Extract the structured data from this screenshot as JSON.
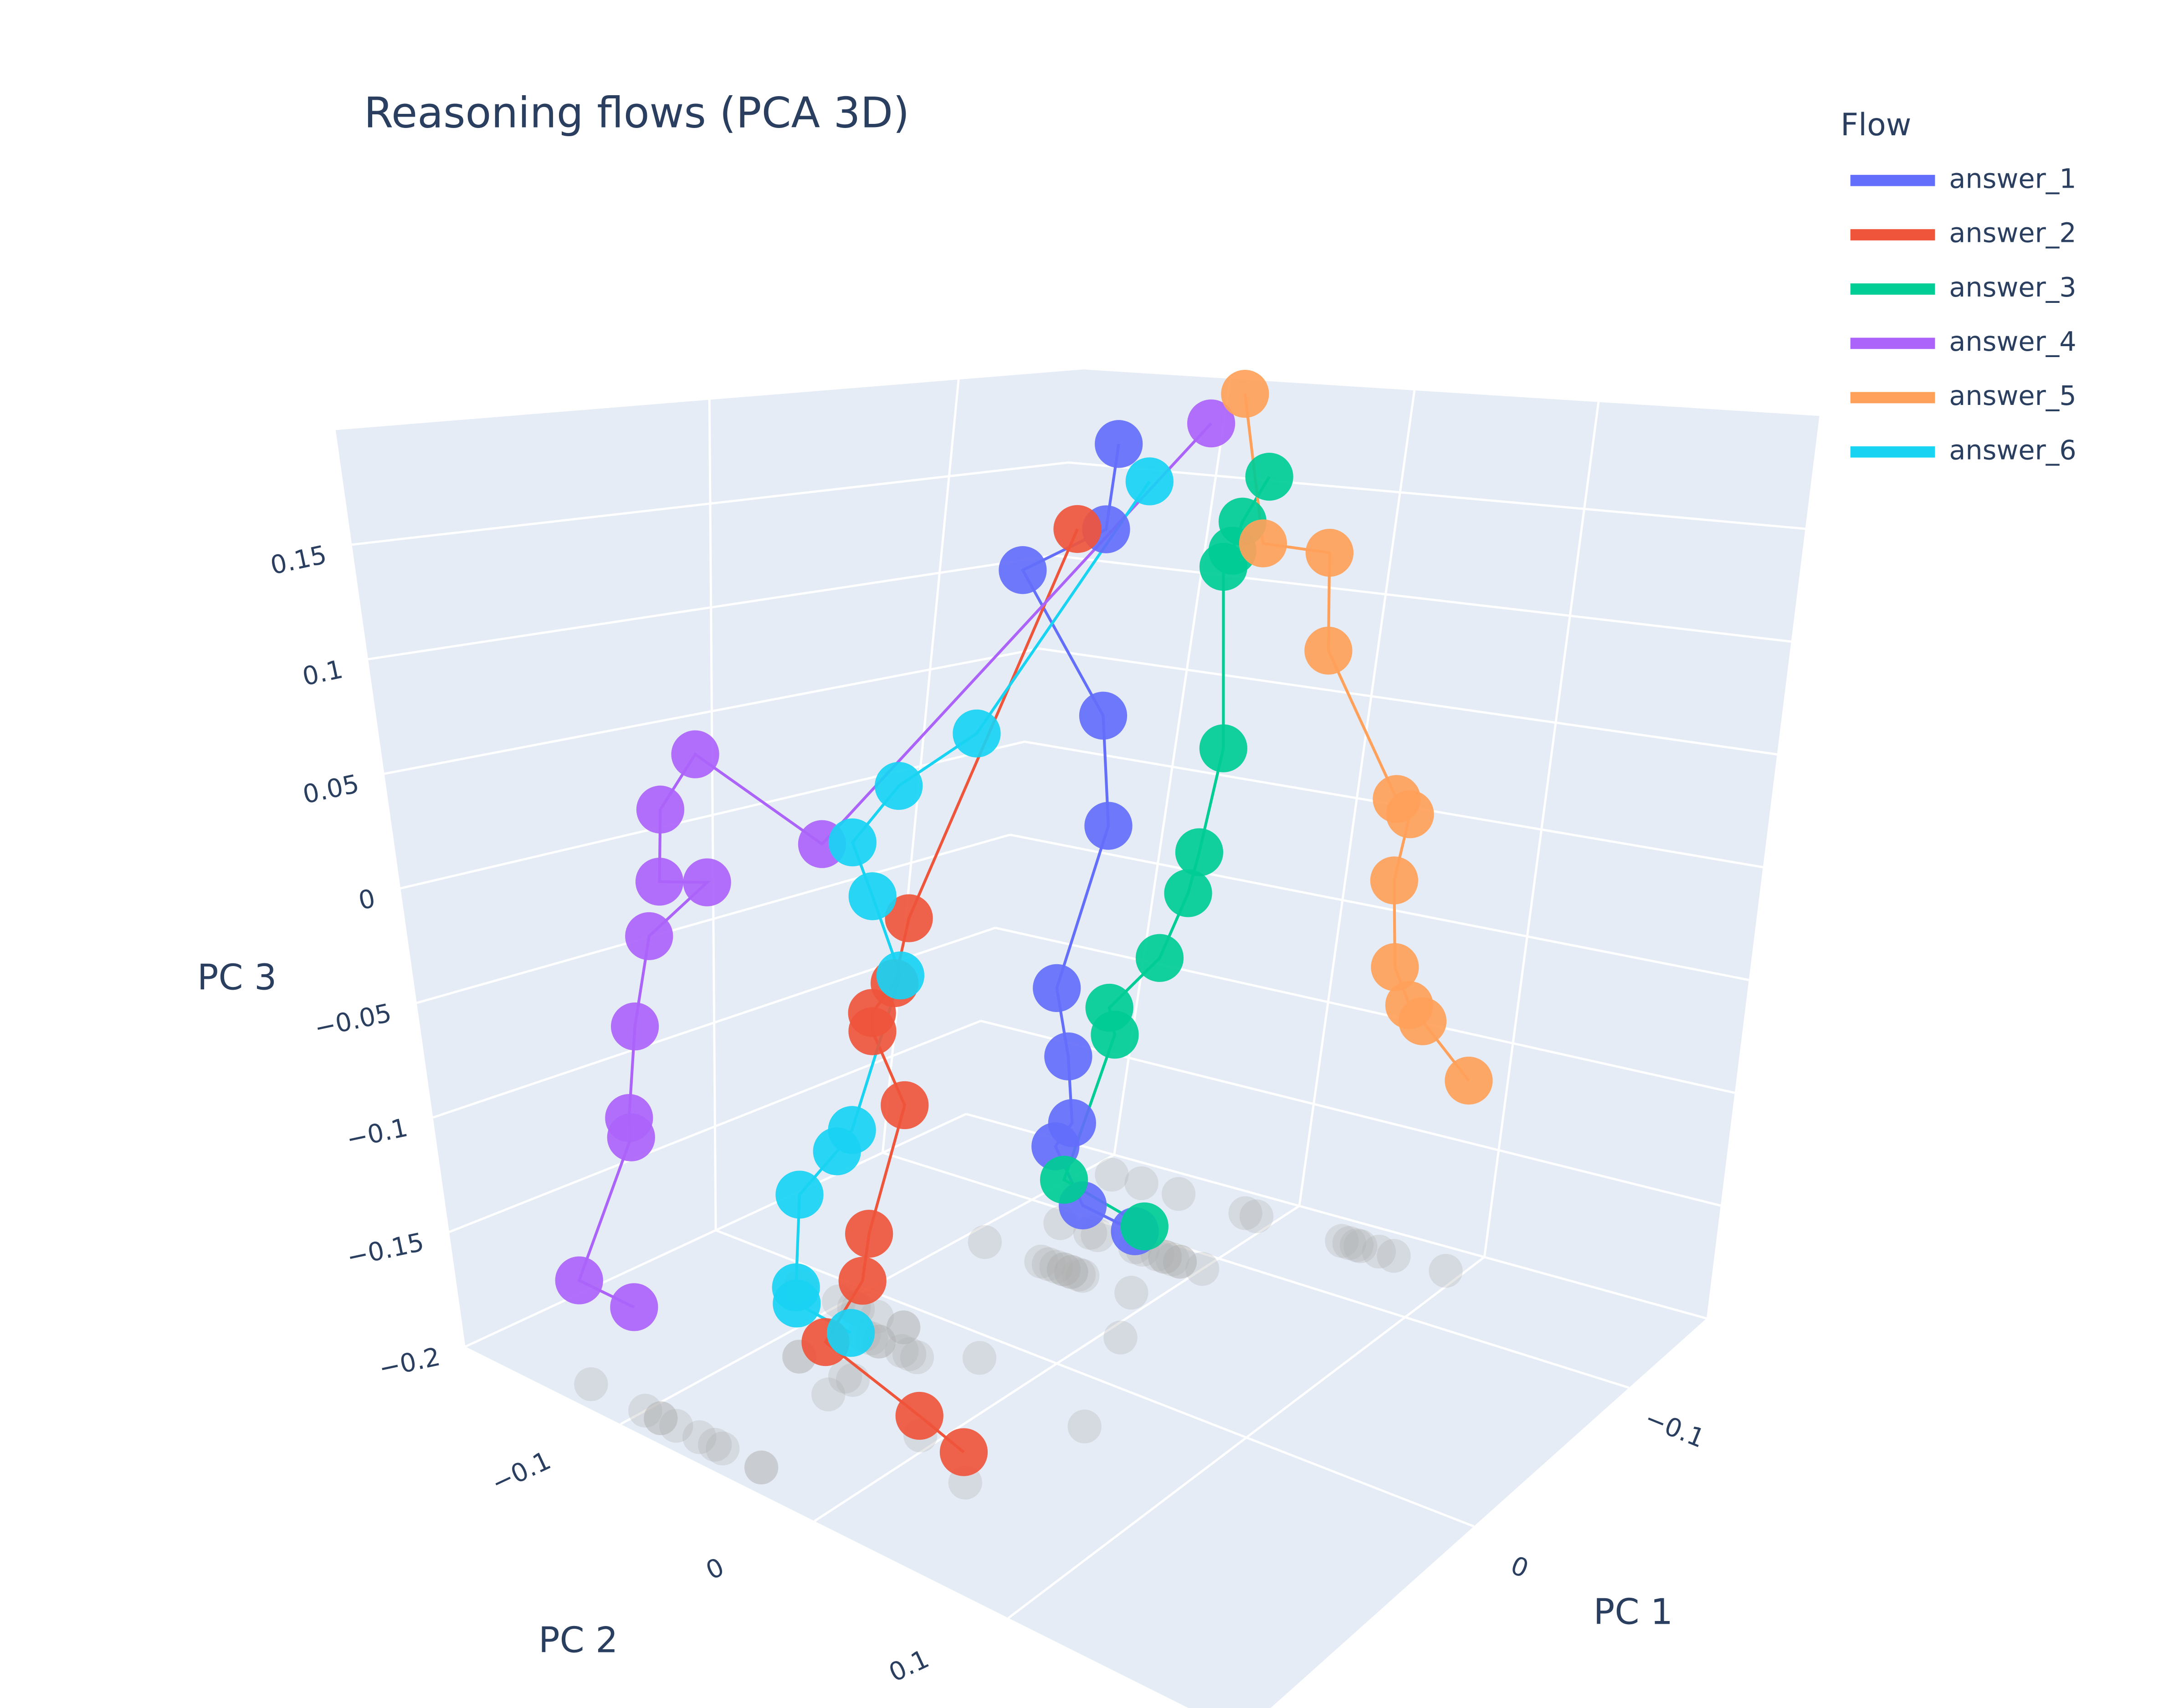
{
  "chart_data": {
    "type": "scatter3d",
    "title": "Reasoning flows (PCA 3D)",
    "x_label": "PC 1",
    "y_label": "PC 2",
    "z_label": "PC 3",
    "legend_title": "Flow",
    "legend_position": "top-right",
    "shadows": true,
    "xlim": [
      -0.15,
      0.15
    ],
    "ylim": [
      -0.18,
      0.22
    ],
    "zlim": [
      -0.2,
      0.2
    ],
    "xticks": [
      {
        "value": -0.1,
        "label": "−0.1"
      },
      0
    ],
    "yticks": [
      {
        "value": -0.1,
        "label": "−0.1"
      },
      0,
      0.1
    ],
    "zticks": [
      {
        "value": -0.2,
        "label": "−0.2"
      },
      {
        "value": -0.15,
        "label": "−0.15"
      },
      {
        "value": -0.1,
        "label": "−0.1"
      },
      {
        "value": -0.05,
        "label": "−0.05"
      },
      0,
      0.05,
      0.1,
      0.15
    ],
    "series": [
      {
        "name": "answer_1",
        "color": "#636efa",
        "x": [
          -0.06,
          -0.06,
          -0.06,
          -0.06,
          -0.06,
          -0.06,
          -0.06,
          -0.06,
          -0.06,
          -0.06,
          -0.06
        ],
        "y": [
          -0.044,
          -0.048,
          -0.09,
          -0.044,
          -0.038,
          -0.06,
          -0.052,
          -0.048,
          -0.056,
          -0.04,
          -0.012
        ],
        "z": [
          0.184,
          0.144,
          0.12,
          0.058,
          0.008,
          -0.072,
          -0.102,
          -0.132,
          -0.145,
          -0.168,
          -0.172
        ]
      },
      {
        "name": "answer_2",
        "color": "#ef553b",
        "x": [
          0.03,
          0.03,
          0.03,
          0.03,
          0.03,
          0.03,
          0.03,
          0.03,
          0.075,
          0.075,
          0.09
        ],
        "y": [
          0.04,
          -0.048,
          -0.056,
          -0.068,
          -0.068,
          -0.052,
          -0.072,
          -0.076,
          -0.056,
          -0.008,
          0.028
        ],
        "z": [
          0.168,
          -0.01,
          -0.04,
          -0.056,
          -0.064,
          -0.092,
          -0.154,
          -0.176,
          -0.178,
          -0.192,
          -0.188
        ]
      },
      {
        "name": "answer_3",
        "color": "#00cc96",
        "x": [
          -0.09,
          -0.09,
          -0.09,
          -0.09,
          -0.09,
          -0.09,
          -0.09,
          -0.09,
          -0.09,
          -0.09,
          -0.09,
          -0.09
        ],
        "y": [
          0,
          -0.012,
          -0.016,
          -0.02,
          -0.012,
          -0.02,
          -0.024,
          -0.036,
          -0.06,
          -0.056,
          -0.076,
          -0.032
        ],
        "z": [
          0.168,
          0.146,
          0.132,
          0.124,
          0.04,
          -0.01,
          -0.03,
          -0.063,
          -0.092,
          -0.104,
          -0.179,
          -0.189
        ]
      },
      {
        "name": "answer_4",
        "color": "#ab63fa",
        "x": [
          -0.135,
          0.06,
          0.135,
          0.135,
          0.135,
          0.135,
          0.135,
          0.135,
          0.135,
          0.135,
          0.135,
          0.135
        ],
        "y": [
          -0.088,
          -0.06,
          -0.04,
          -0.06,
          -0.064,
          -0.04,
          -0.072,
          -0.084,
          -0.092,
          -0.092,
          -0.128,
          -0.1
        ],
        "z": [
          0.18,
          0.027,
          0.084,
          0.058,
          0.028,
          0.033,
          0.004,
          -0.036,
          -0.076,
          -0.084,
          -0.156,
          -0.157
        ]
      },
      {
        "name": "answer_5",
        "color": "#ffa15a",
        "x": [
          -0.135,
          -0.135,
          -0.135,
          -0.135,
          -0.135,
          -0.135,
          -0.135,
          -0.135,
          -0.135,
          -0.135,
          -0.135
        ],
        "y": [
          -0.072,
          -0.052,
          -0.016,
          -0.01,
          0.036,
          0.044,
          0.04,
          0.046,
          0.056,
          0.064,
          0.092
        ],
        "z": [
          0.196,
          0.123,
          0.122,
          0.075,
          0.01,
          0.004,
          -0.028,
          -0.068,
          -0.084,
          -0.09,
          -0.112
        ]
      },
      {
        "name": "answer_6",
        "color": "#19d3f3",
        "x": [
          -0.03,
          0.015,
          0.015,
          0.015,
          0.015,
          0.015,
          0.015,
          0.015,
          0.015,
          0.06,
          0.06,
          0.06
        ],
        "y": [
          0.008,
          -0.028,
          -0.068,
          -0.092,
          -0.082,
          -0.068,
          -0.094,
          -0.102,
          -0.122,
          -0.084,
          -0.084,
          -0.056
        ],
        "z": [
          0.176,
          0.07,
          0.04,
          0.01,
          -0.012,
          -0.044,
          -0.12,
          -0.132,
          -0.158,
          -0.17,
          -0.177,
          -0.18
        ]
      }
    ]
  }
}
